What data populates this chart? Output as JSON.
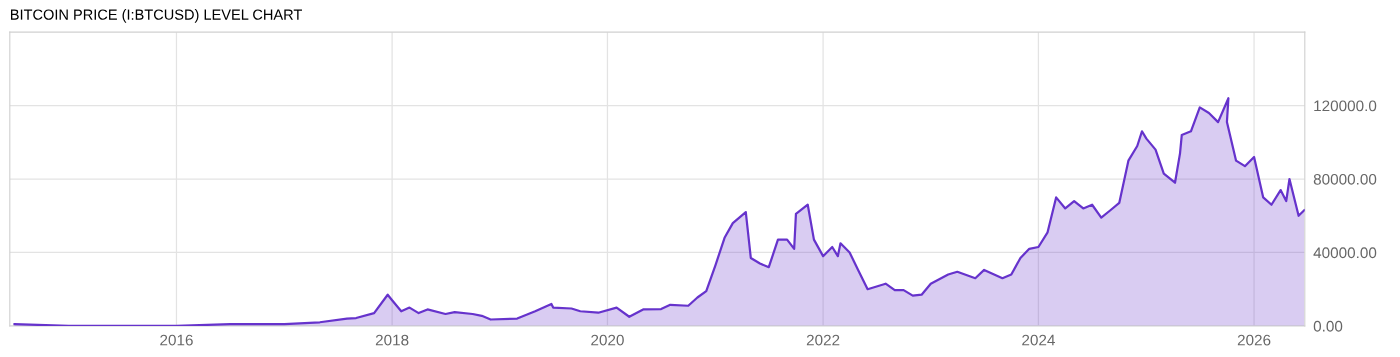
{
  "chart_data": {
    "type": "area",
    "title": "BITCOIN PRICE (I:BTCUSD) LEVEL CHART",
    "x": [
      "2014-07",
      "2015-01",
      "2015-07",
      "2016-01",
      "2016-07",
      "2017-01",
      "2017-05",
      "2017-08",
      "2017-09",
      "2017-11",
      "2017-12-17",
      "2018-01",
      "2018-02",
      "2018-03",
      "2018-04",
      "2018-05",
      "2018-07",
      "2018-08",
      "2018-10",
      "2018-11",
      "2018-12",
      "2019-03",
      "2019-05",
      "2019-06-25",
      "2019-07",
      "2019-09",
      "2019-10",
      "2019-12",
      "2020-02",
      "2020-03-15",
      "2020-05",
      "2020-07",
      "2020-08",
      "2020-10",
      "2020-11",
      "2020-12",
      "2021-01",
      "2021-02",
      "2021-03",
      "2021-04-14",
      "2021-05",
      "2021-06",
      "2021-07",
      "2021-08",
      "2021-09",
      "2021-09-25",
      "2021-10",
      "2021-11-10",
      "2021-12",
      "2022-01",
      "2022-02",
      "2022-02-20",
      "2022-03",
      "2022-04",
      "2022-05",
      "2022-06",
      "2022-08",
      "2022-09",
      "2022-10",
      "2022-11",
      "2022-12",
      "2023-01",
      "2023-03",
      "2023-04",
      "2023-06",
      "2023-07",
      "2023-09",
      "2023-10",
      "2023-11",
      "2023-12",
      "2024-01",
      "2024-02",
      "2024-03",
      "2024-04",
      "2024-05",
      "2024-06",
      "2024-07",
      "2024-08",
      "2024-09",
      "2024-10",
      "2024-11",
      "2024-12",
      "2024-12-17",
      "2025-01",
      "2025-02",
      "2025-03",
      "2025-04-08",
      "2025-04-25",
      "2025-05",
      "2025-06",
      "2025-07",
      "2025-08",
      "2025-09",
      "2025-10-06",
      "2025-10",
      "2025-11",
      "2025-12",
      "2026-01",
      "2026-02",
      "2026-03",
      "2026-04",
      "2026-04-20",
      "2026-05",
      "2026-06",
      "2026-06-20"
    ],
    "series": [
      {
        "color": "#6633cc",
        "values": [
          1000,
          0,
          0,
          0,
          1000,
          1000,
          2000,
          4000,
          4300,
          7000,
          17000,
          14000,
          8000,
          10000,
          7000,
          9000,
          6500,
          7500,
          6500,
          5500,
          3500,
          4000,
          8000,
          12000,
          10000,
          9500,
          8000,
          7200,
          10000,
          5000,
          9000,
          9200,
          11500,
          11000,
          15500,
          19000,
          33000,
          48000,
          56000,
          62000,
          37000,
          34000,
          32000,
          47000,
          47000,
          42000,
          61000,
          66000,
          47000,
          38000,
          43000,
          38000,
          45000,
          40000,
          30000,
          20000,
          23000,
          19500,
          19500,
          16500,
          17000,
          23000,
          28000,
          29500,
          26000,
          30500,
          26000,
          28000,
          37000,
          42000,
          43000,
          51000,
          70000,
          64000,
          68000,
          64000,
          66000,
          59000,
          63000,
          67000,
          90000,
          98000,
          106000,
          102000,
          96000,
          83000,
          78000,
          94000,
          104000,
          106000,
          119000,
          116000,
          111000,
          124000,
          111000,
          90000,
          87000,
          92000,
          70000,
          66000,
          74000,
          68000,
          80000,
          60000,
          63000
        ]
      }
    ],
    "xlim": [
      "2014-06-15",
      "2026-06-22"
    ],
    "xticks": [
      {
        "value": "2016",
        "label": "2016"
      },
      {
        "value": "2018",
        "label": "2018"
      },
      {
        "value": "2020",
        "label": "2020"
      },
      {
        "value": "2022",
        "label": "2022"
      },
      {
        "value": "2024",
        "label": "2024"
      },
      {
        "value": "2026",
        "label": "2026"
      }
    ],
    "ylim": [
      0,
      160000
    ],
    "yticks": [
      {
        "value": 0,
        "label": "0.00"
      },
      {
        "value": 40000,
        "label": "40000.00"
      },
      {
        "value": 80000,
        "label": "80000.00"
      },
      {
        "value": 120000,
        "label": "120000.0"
      }
    ],
    "grid": true,
    "legend": false
  }
}
